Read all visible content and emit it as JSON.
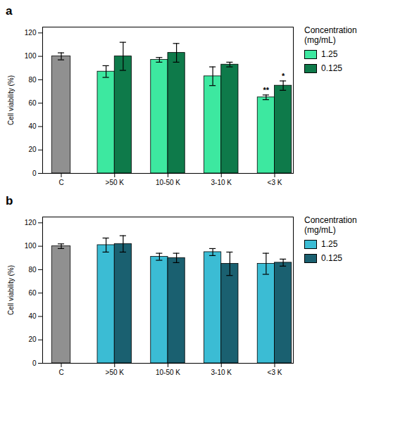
{
  "chart_data": [
    {
      "type": "bar",
      "title": "a",
      "categories": [
        "C",
        ">50 K",
        "10-50 K",
        "3-10 K",
        "<3 K"
      ],
      "series": [
        {
          "color": "#909090",
          "values": [
            100,
            null,
            null,
            null,
            null
          ],
          "errors": [
            3,
            null,
            null,
            null,
            null
          ]
        },
        {
          "name": "1.25",
          "color": "#3de8a0",
          "values": [
            null,
            87,
            97,
            83,
            65
          ],
          "errors": [
            null,
            5,
            2,
            8,
            2
          ]
        },
        {
          "name": "0.125",
          "color": "#0e7a4a",
          "values": [
            null,
            100,
            103,
            93,
            75
          ],
          "errors": [
            null,
            12,
            8,
            2,
            4
          ]
        }
      ],
      "ylabel": "Cell viability (%)",
      "ylim": [
        0,
        125
      ],
      "yticks": [
        0,
        20,
        40,
        60,
        80,
        100,
        120
      ],
      "grid": false,
      "legend": "right",
      "legend_title": "Concentration\n(mg/mL)",
      "annotations": [
        {
          "category": "<3 K",
          "series": "1.25",
          "text": "**"
        },
        {
          "category": "<3 K",
          "series": "0.125",
          "text": "*"
        }
      ]
    },
    {
      "type": "bar",
      "title": "b",
      "categories": [
        "C",
        ">50 K",
        "10-50 K",
        "3-10 K",
        "<3 K"
      ],
      "series": [
        {
          "color": "#909090",
          "values": [
            100,
            null,
            null,
            null,
            null
          ],
          "errors": [
            2,
            null,
            null,
            null,
            null
          ]
        },
        {
          "name": "1.25",
          "color": "#3bbcd4",
          "values": [
            null,
            101,
            91,
            95,
            85
          ],
          "errors": [
            null,
            6,
            3,
            3,
            9
          ]
        },
        {
          "name": "0.125",
          "color": "#1a6070",
          "values": [
            null,
            102,
            90,
            85,
            86
          ],
          "errors": [
            null,
            7,
            4,
            10,
            3
          ]
        }
      ],
      "ylabel": "Cell viability (%)",
      "ylim": [
        0,
        125
      ],
      "yticks": [
        0,
        20,
        40,
        60,
        80,
        100,
        120
      ],
      "grid": false,
      "legend": "right",
      "legend_title": "Concentration\n(mg/mL)"
    }
  ]
}
